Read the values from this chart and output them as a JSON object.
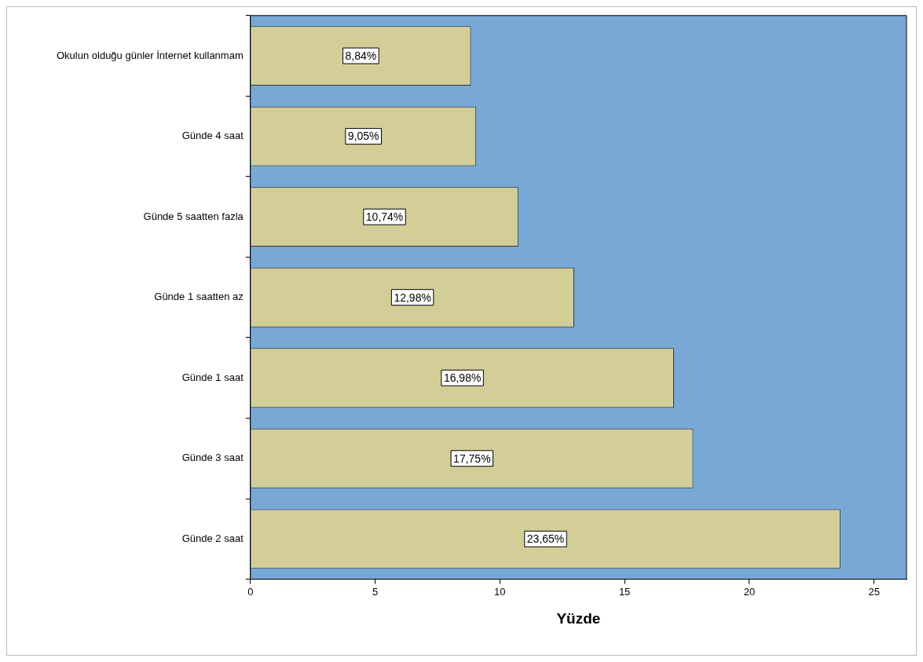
{
  "chart_data": {
    "type": "bar",
    "orientation": "horizontal",
    "xlabel": "Yüzde",
    "categories": [
      "Okulun olduğu günler İnternet kullanmam",
      "Günde 4 saat",
      "Günde 5 saatten fazla",
      "Günde 1 saatten az",
      "Günde 1 saat",
      "Günde 3 saat",
      "Günde 2 saat"
    ],
    "values": [
      8.84,
      9.05,
      10.74,
      12.98,
      16.98,
      17.75,
      23.65
    ],
    "value_labels": [
      "8,84%",
      "9,05%",
      "10,74%",
      "12,98%",
      "16,98%",
      "17,75%",
      "23,65%"
    ],
    "color": "#d3ce98",
    "xlim": [
      0,
      26.3
    ],
    "xticks": [
      0,
      5,
      10,
      15,
      20,
      25
    ],
    "grid": false,
    "legend": false
  }
}
